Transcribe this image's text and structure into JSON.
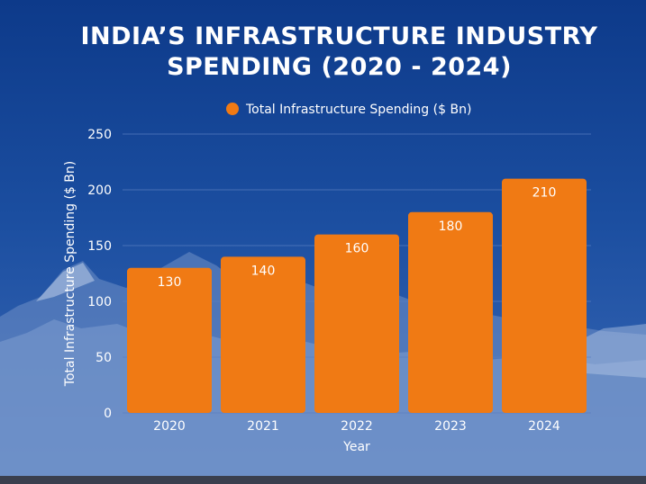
{
  "title_lines": [
    "INDIA’S INFRASTRUCTURE INDUSTRY",
    "SPENDING (2020 - 2024)"
  ],
  "colors": {
    "bar": "#f07a14",
    "text": "#ffffff",
    "grid": "#5a7fc0"
  },
  "chart_data": {
    "type": "bar",
    "title": "INDIA’S INFRASTRUCTURE INDUSTRY SPENDING (2020 - 2024)",
    "categories": [
      "2020",
      "2021",
      "2022",
      "2023",
      "2024"
    ],
    "series": [
      {
        "name": "Total Infrastructure Spending ($ Bn)",
        "values": [
          130,
          140,
          160,
          180,
          210
        ]
      }
    ],
    "xlabel": "Year",
    "ylabel": "Total Infrastructure Spending ($ Bn)",
    "ylim": [
      0,
      250
    ],
    "yticks": [
      0,
      50,
      100,
      150,
      200,
      250
    ],
    "grid": true,
    "legend": "top-center",
    "data_labels": true
  }
}
